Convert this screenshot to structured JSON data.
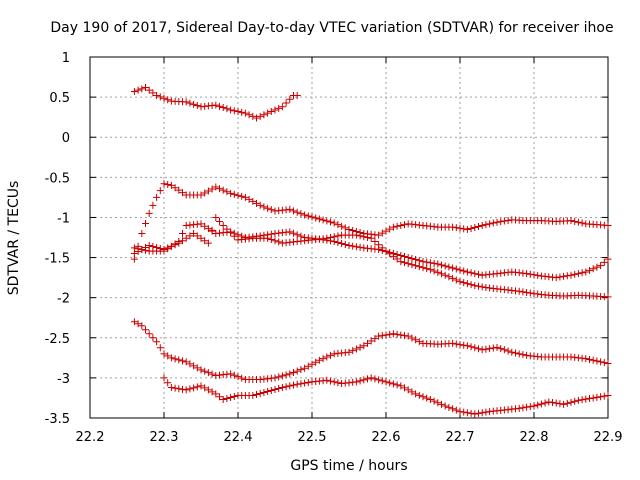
{
  "chart_data": {
    "type": "scatter",
    "title": "Day 190 of 2017, Sidereal Day-to-day VTEC variation (SDTVAR) for receiver ihoe",
    "xlabel": "GPS time / hours",
    "ylabel": "SDTVAR / TECUs",
    "xlim": [
      22.2,
      22.9
    ],
    "ylim": [
      -3.5,
      1
    ],
    "xticks": [
      "22.2",
      "22.3",
      "22.4",
      "22.5",
      "22.6",
      "22.7",
      "22.8",
      "22.9"
    ],
    "yticks": [
      "1",
      "0.5",
      "0",
      "-0.5",
      "-1",
      "-1.5",
      "-2",
      "-2.5",
      "-3",
      "-3.5"
    ],
    "grid": true,
    "marker": "+",
    "color": "#cc0000",
    "series": [
      {
        "name": "track-upper",
        "x_start": 22.26,
        "x_end": 22.48,
        "step": 0.005,
        "anchors": [
          [
            22.26,
            0.57
          ],
          [
            22.275,
            0.62
          ],
          [
            22.29,
            0.52
          ],
          [
            22.31,
            0.45
          ],
          [
            22.33,
            0.44
          ],
          [
            22.35,
            0.38
          ],
          [
            22.37,
            0.4
          ],
          [
            22.39,
            0.34
          ],
          [
            22.41,
            0.3
          ],
          [
            22.425,
            0.24
          ],
          [
            22.44,
            0.3
          ],
          [
            22.46,
            0.38
          ],
          [
            22.475,
            0.52
          ]
        ]
      },
      {
        "name": "track-a",
        "x_start": 22.26,
        "x_end": 22.9,
        "step": 0.005,
        "anchors": [
          [
            22.26,
            -1.52
          ],
          [
            22.27,
            -1.2
          ],
          [
            22.28,
            -0.95
          ],
          [
            22.29,
            -0.75
          ],
          [
            22.3,
            -0.58
          ],
          [
            22.31,
            -0.6
          ],
          [
            22.33,
            -0.72
          ],
          [
            22.35,
            -0.72
          ],
          [
            22.37,
            -0.62
          ],
          [
            22.39,
            -0.7
          ],
          [
            22.41,
            -0.75
          ],
          [
            22.43,
            -0.85
          ],
          [
            22.45,
            -0.92
          ],
          [
            22.47,
            -0.9
          ],
          [
            22.49,
            -0.97
          ],
          [
            22.51,
            -1.02
          ],
          [
            22.53,
            -1.07
          ],
          [
            22.55,
            -1.15
          ],
          [
            22.57,
            -1.2
          ],
          [
            22.59,
            -1.22
          ],
          [
            22.61,
            -1.12
          ],
          [
            22.63,
            -1.08
          ],
          [
            22.65,
            -1.1
          ],
          [
            22.67,
            -1.12
          ],
          [
            22.69,
            -1.12
          ],
          [
            22.71,
            -1.15
          ],
          [
            22.73,
            -1.1
          ],
          [
            22.75,
            -1.06
          ],
          [
            22.77,
            -1.03
          ],
          [
            22.79,
            -1.04
          ],
          [
            22.81,
            -1.04
          ],
          [
            22.83,
            -1.05
          ],
          [
            22.85,
            -1.04
          ],
          [
            22.87,
            -1.08
          ],
          [
            22.9,
            -1.1
          ]
        ]
      },
      {
        "name": "track-b",
        "x_start": 22.26,
        "x_end": 22.9,
        "step": 0.005,
        "anchors": [
          [
            22.26,
            -1.38
          ],
          [
            22.28,
            -1.42
          ],
          [
            22.3,
            -1.42
          ],
          [
            22.32,
            -1.3
          ],
          [
            22.33,
            -1.1
          ],
          [
            22.35,
            -1.08
          ],
          [
            22.37,
            -1.2
          ],
          [
            22.39,
            -1.18
          ],
          [
            22.41,
            -1.25
          ],
          [
            22.43,
            -1.23
          ],
          [
            22.45,
            -1.2
          ],
          [
            22.47,
            -1.18
          ],
          [
            22.49,
            -1.25
          ],
          [
            22.51,
            -1.27
          ],
          [
            22.53,
            -1.3
          ],
          [
            22.55,
            -1.35
          ],
          [
            22.57,
            -1.38
          ],
          [
            22.59,
            -1.4
          ],
          [
            22.61,
            -1.45
          ],
          [
            22.63,
            -1.5
          ],
          [
            22.65,
            -1.55
          ],
          [
            22.67,
            -1.58
          ],
          [
            22.69,
            -1.63
          ],
          [
            22.71,
            -1.68
          ],
          [
            22.73,
            -1.72
          ],
          [
            22.75,
            -1.7
          ],
          [
            22.77,
            -1.68
          ],
          [
            22.79,
            -1.7
          ],
          [
            22.81,
            -1.73
          ],
          [
            22.83,
            -1.75
          ],
          [
            22.85,
            -1.72
          ],
          [
            22.87,
            -1.68
          ],
          [
            22.89,
            -1.6
          ],
          [
            22.9,
            -1.52
          ]
        ]
      },
      {
        "name": "track-c",
        "x_start": 22.26,
        "x_end": 22.9,
        "step": 0.005,
        "anchors": [
          [
            22.26,
            -1.45
          ],
          [
            22.28,
            -1.35
          ],
          [
            22.3,
            -1.4
          ],
          [
            22.32,
            -1.32
          ],
          [
            22.34,
            -1.2
          ],
          [
            22.36,
            -1.32
          ],
          [
            22.37,
            -1.0
          ],
          [
            22.38,
            -1.1
          ],
          [
            22.4,
            -1.28
          ],
          [
            22.42,
            -1.26
          ],
          [
            22.44,
            -1.26
          ],
          [
            22.46,
            -1.32
          ],
          [
            22.48,
            -1.3
          ],
          [
            22.5,
            -1.28
          ],
          [
            22.52,
            -1.26
          ],
          [
            22.54,
            -1.22
          ],
          [
            22.56,
            -1.22
          ],
          [
            22.58,
            -1.26
          ],
          [
            22.6,
            -1.42
          ],
          [
            22.62,
            -1.55
          ],
          [
            22.64,
            -1.6
          ],
          [
            22.66,
            -1.65
          ],
          [
            22.68,
            -1.72
          ],
          [
            22.7,
            -1.8
          ],
          [
            22.72,
            -1.85
          ],
          [
            22.74,
            -1.88
          ],
          [
            22.76,
            -1.9
          ],
          [
            22.78,
            -1.92
          ],
          [
            22.8,
            -1.95
          ],
          [
            22.82,
            -1.97
          ],
          [
            22.84,
            -1.98
          ],
          [
            22.86,
            -1.97
          ],
          [
            22.88,
            -1.98
          ],
          [
            22.9,
            -1.99
          ]
        ]
      },
      {
        "name": "track-d",
        "x_start": 22.26,
        "x_end": 22.9,
        "step": 0.005,
        "anchors": [
          [
            22.26,
            -2.3
          ],
          [
            22.27,
            -2.35
          ],
          [
            22.28,
            -2.45
          ],
          [
            22.29,
            -2.55
          ],
          [
            22.3,
            -2.7
          ],
          [
            22.31,
            -2.75
          ],
          [
            22.33,
            -2.8
          ],
          [
            22.35,
            -2.9
          ],
          [
            22.37,
            -2.97
          ],
          [
            22.39,
            -2.95
          ],
          [
            22.41,
            -3.02
          ],
          [
            22.43,
            -3.02
          ],
          [
            22.45,
            -3.0
          ],
          [
            22.47,
            -2.95
          ],
          [
            22.49,
            -2.88
          ],
          [
            22.51,
            -2.78
          ],
          [
            22.53,
            -2.7
          ],
          [
            22.55,
            -2.68
          ],
          [
            22.57,
            -2.6
          ],
          [
            22.59,
            -2.48
          ],
          [
            22.61,
            -2.45
          ],
          [
            22.63,
            -2.48
          ],
          [
            22.65,
            -2.57
          ],
          [
            22.67,
            -2.58
          ],
          [
            22.69,
            -2.57
          ],
          [
            22.71,
            -2.6
          ],
          [
            22.73,
            -2.65
          ],
          [
            22.75,
            -2.62
          ],
          [
            22.77,
            -2.68
          ],
          [
            22.79,
            -2.72
          ],
          [
            22.81,
            -2.74
          ],
          [
            22.83,
            -2.74
          ],
          [
            22.85,
            -2.74
          ],
          [
            22.87,
            -2.76
          ],
          [
            22.89,
            -2.8
          ],
          [
            22.9,
            -2.82
          ]
        ]
      },
      {
        "name": "track-e",
        "x_start": 22.3,
        "x_end": 22.9,
        "step": 0.005,
        "anchors": [
          [
            22.3,
            -3.0
          ],
          [
            22.31,
            -3.12
          ],
          [
            22.33,
            -3.15
          ],
          [
            22.35,
            -3.1
          ],
          [
            22.37,
            -3.2
          ],
          [
            22.38,
            -3.27
          ],
          [
            22.4,
            -3.22
          ],
          [
            22.42,
            -3.22
          ],
          [
            22.44,
            -3.17
          ],
          [
            22.46,
            -3.12
          ],
          [
            22.48,
            -3.08
          ],
          [
            22.5,
            -3.05
          ],
          [
            22.52,
            -3.03
          ],
          [
            22.54,
            -3.07
          ],
          [
            22.56,
            -3.05
          ],
          [
            22.58,
            -3.0
          ],
          [
            22.6,
            -3.05
          ],
          [
            22.62,
            -3.1
          ],
          [
            22.64,
            -3.2
          ],
          [
            22.66,
            -3.27
          ],
          [
            22.68,
            -3.35
          ],
          [
            22.7,
            -3.42
          ],
          [
            22.72,
            -3.45
          ],
          [
            22.74,
            -3.42
          ],
          [
            22.76,
            -3.4
          ],
          [
            22.78,
            -3.38
          ],
          [
            22.8,
            -3.35
          ],
          [
            22.82,
            -3.3
          ],
          [
            22.84,
            -3.33
          ],
          [
            22.86,
            -3.28
          ],
          [
            22.88,
            -3.25
          ],
          [
            22.9,
            -3.22
          ]
        ]
      }
    ]
  }
}
